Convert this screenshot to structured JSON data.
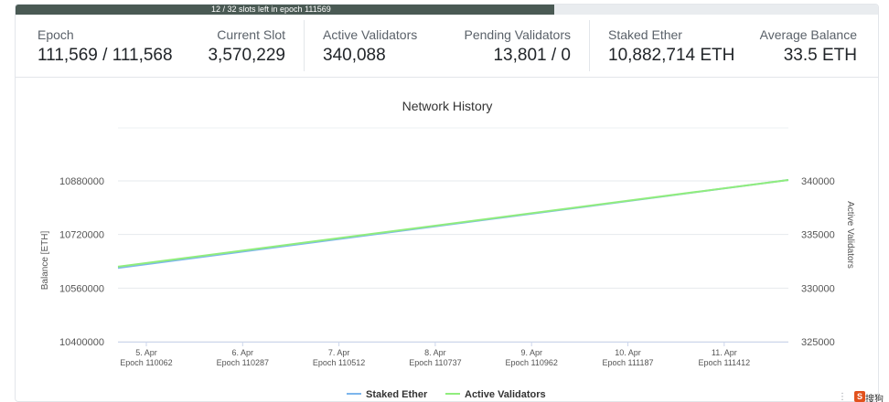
{
  "progress": {
    "text": "12 / 32 slots left in epoch 111569",
    "fraction_complete": 0.625,
    "fill_color": "#4a5a54"
  },
  "stats": {
    "epoch": {
      "label": "Epoch",
      "value": "111,569 / 111,568"
    },
    "current_slot": {
      "label": "Current Slot",
      "value": "3,570,229"
    },
    "active_validators": {
      "label": "Active Validators",
      "value": "340,088"
    },
    "pending_validators": {
      "label": "Pending Validators",
      "value": "13,801 / 0"
    },
    "staked_ether": {
      "label": "Staked Ether",
      "value": "10,882,714 ETH"
    },
    "average_balance": {
      "label": "Average Balance",
      "value": "33.5 ETH"
    }
  },
  "chart_data": {
    "type": "line",
    "title": "Network History",
    "y_left_label": "Balance [ETH]",
    "y_right_label": "Active Validators",
    "y_left_ticks": [
      "10400000",
      "10560000",
      "10720000",
      "10880000"
    ],
    "y_right_ticks": [
      "325000",
      "330000",
      "335000",
      "340000"
    ],
    "y_left_range": [
      10400000,
      10880000
    ],
    "y_right_range": [
      325000,
      340000
    ],
    "x_ticks": [
      {
        "date": "5. Apr",
        "epoch": "Epoch 110062"
      },
      {
        "date": "6. Apr",
        "epoch": "Epoch 110287"
      },
      {
        "date": "7. Apr",
        "epoch": "Epoch 110512"
      },
      {
        "date": "8. Apr",
        "epoch": "Epoch 110737"
      },
      {
        "date": "9. Apr",
        "epoch": "Epoch 110962"
      },
      {
        "date": "10. Apr",
        "epoch": "Epoch 111187"
      },
      {
        "date": "11. Apr",
        "epoch": "Epoch 111412"
      }
    ],
    "x_range": [
      110000,
      111569
    ],
    "grid": true,
    "legend_position": "bottom-center",
    "series": [
      {
        "name": "Staked Ether",
        "axis": "left",
        "color": "#7cb5ec",
        "x": [
          110000,
          111569
        ],
        "values": [
          10620000,
          10882714
        ]
      },
      {
        "name": "Active Validators",
        "axis": "right",
        "color": "#90ed7d",
        "x": [
          110000,
          111569
        ],
        "values": [
          332000,
          340088
        ]
      }
    ]
  },
  "corner": {
    "menu_glyph": "⋮",
    "logo_icon": "S",
    "logo_text": "搜狗"
  }
}
